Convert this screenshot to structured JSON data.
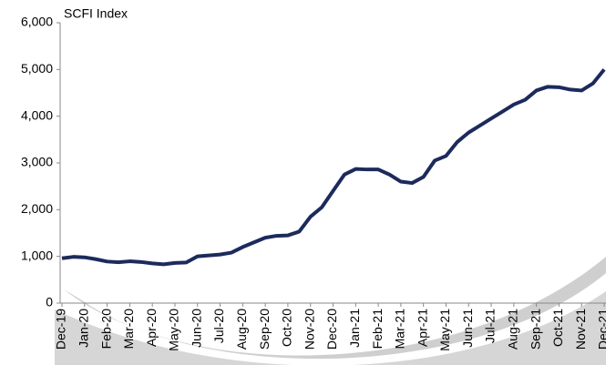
{
  "chart_data": {
    "type": "line",
    "title": "SCFI Index",
    "categories": [
      "Dec-19",
      null,
      "Jan-20",
      null,
      "Feb-20",
      null,
      "Mar-20",
      null,
      "Apr-20",
      null,
      "May-20",
      null,
      "Jun-20",
      null,
      "Jul-20",
      null,
      "Aug-20",
      null,
      "Sep-20",
      null,
      "Oct-20",
      null,
      "Nov-20",
      null,
      "Dec-20",
      null,
      "Jan-21",
      null,
      "Feb-21",
      null,
      "Mar-21",
      null,
      "Apr-21",
      null,
      "May-21",
      null,
      "Jun-21",
      null,
      "Jul-21",
      null,
      "Aug-21",
      null,
      "Sep-21",
      null,
      "Oct-21",
      null,
      "Nov-21",
      null,
      "Dec-21"
    ],
    "series": [
      {
        "name": "SCFI Index",
        "color": "#1c2a5c",
        "values": [
          960,
          990,
          980,
          940,
          890,
          875,
          895,
          880,
          850,
          830,
          860,
          870,
          1000,
          1020,
          1040,
          1080,
          1200,
          1300,
          1400,
          1440,
          1450,
          1530,
          1850,
          2050,
          2400,
          2750,
          2870,
          2860,
          2860,
          2750,
          2600,
          2570,
          2700,
          3050,
          3150,
          3450,
          3650,
          3800,
          3950,
          4100,
          4250,
          4350,
          4550,
          4630,
          4620,
          4570,
          4550,
          4700,
          5000
        ]
      }
    ],
    "ylim": [
      0,
      6000
    ],
    "yticks": [
      0,
      {
        "value": 1000,
        "label": "1,000"
      },
      {
        "value": 2000,
        "label": "2,000"
      },
      {
        "value": 3000,
        "label": "3,000"
      },
      {
        "value": 4000,
        "label": "4,000"
      },
      {
        "value": 5000,
        "label": "5,000"
      },
      {
        "value": 6000,
        "label": "6,000"
      }
    ]
  }
}
